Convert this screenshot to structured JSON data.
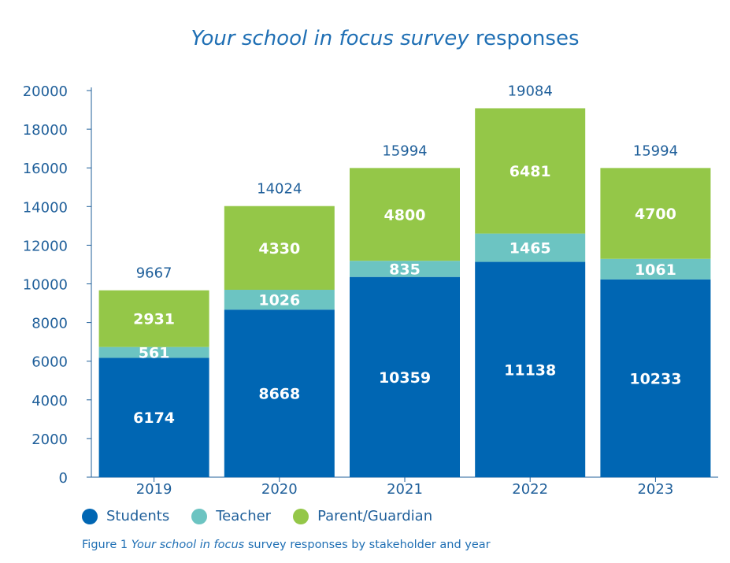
{
  "chart_data": {
    "type": "bar",
    "stacked": true,
    "title_italic": "Your school in focus survey",
    "title_rest": "responses",
    "categories": [
      "2019",
      "2020",
      "2021",
      "2022",
      "2023"
    ],
    "series": [
      {
        "name": "Students",
        "color": "#0066b3",
        "values": [
          6174,
          8668,
          10359,
          11138,
          10233
        ]
      },
      {
        "name": "Teacher",
        "color": "#6cc4c2",
        "values": [
          561,
          1026,
          835,
          1465,
          1061
        ]
      },
      {
        "name": "Parent/Guardian",
        "color": "#94c748",
        "values": [
          2931,
          4330,
          4800,
          6481,
          4700
        ]
      }
    ],
    "totals": [
      9667,
      14024,
      15994,
      19084,
      15994
    ],
    "ylim": [
      0,
      20000
    ],
    "yticks": [
      0,
      2000,
      4000,
      6000,
      8000,
      10000,
      12000,
      14000,
      16000,
      18000,
      20000
    ],
    "grid": false,
    "legend_position": "bottom-left"
  },
  "caption": {
    "prefix": "Figure 1 ",
    "italic": "Your school in focus",
    "suffix": " survey responses by stakeholder and year"
  },
  "colors": {
    "axis_text": "#1f5f9a",
    "title": "#1f6fb4"
  }
}
